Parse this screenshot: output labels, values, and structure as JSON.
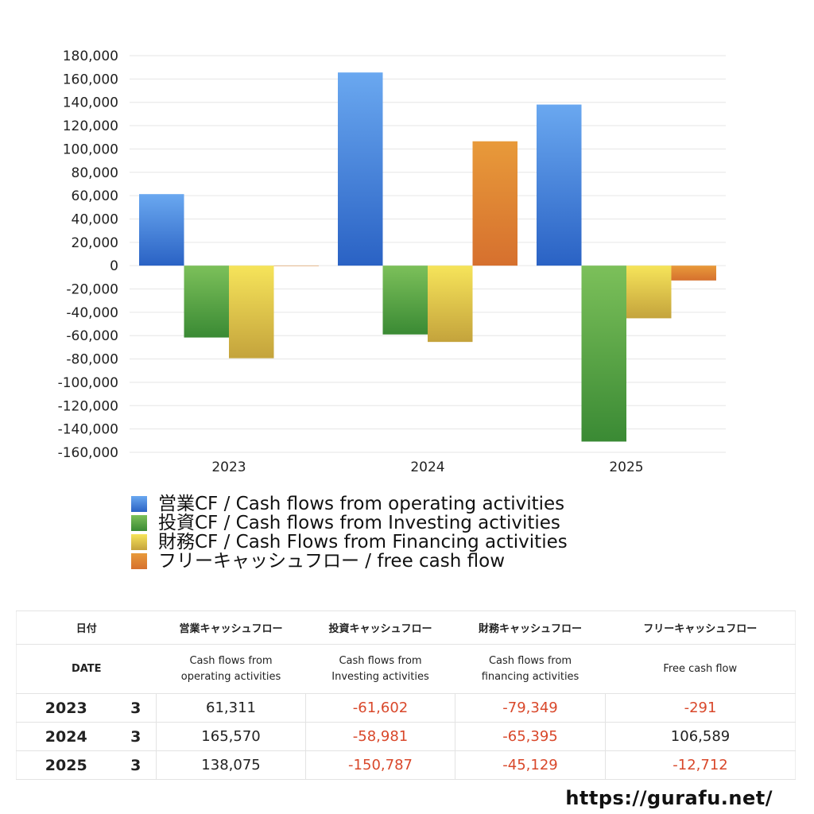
{
  "chart_data": {
    "type": "bar",
    "categories": [
      "2023",
      "2024",
      "2025"
    ],
    "series": [
      {
        "name": "営業CF / Cash flows from operating activities",
        "values": [
          61311,
          165570,
          138075
        ],
        "color_top": "#6aa8f0",
        "color_bottom": "#2a62c4"
      },
      {
        "name": "投資CF / Cash flows from Investing activities",
        "values": [
          -61602,
          -58981,
          -150787
        ],
        "color_top": "#7cc05a",
        "color_bottom": "#3a8a34"
      },
      {
        "name": "財務CF / Cash Flows from Financing activities",
        "values": [
          -79349,
          -65395,
          -45129
        ],
        "color_top": "#f6e45a",
        "color_bottom": "#c4a33c"
      },
      {
        "name": "フリーキャッシュフロー / free cash flow",
        "values": [
          -291,
          106589,
          -12712
        ],
        "color_top": "#e89a3a",
        "color_bottom": "#d6702e"
      }
    ],
    "ylim": [
      -160000,
      180000
    ],
    "yticks": [
      "180,000",
      "160,000",
      "140,000",
      "120,000",
      "100,000",
      "80,000",
      "60,000",
      "40,000",
      "20,000",
      "0",
      "-20,000",
      "-40,000",
      "-60,000",
      "-80,000",
      "-100,000",
      "-120,000",
      "-140,000",
      "-160,000"
    ],
    "grid": true,
    "legend_position": "bottom"
  },
  "table": {
    "headers_ja": [
      "日付",
      "営業キャッシュフロー",
      "投資キャッシュフロー",
      "財務キャッシュフロー",
      "フリーキャッシュフロー"
    ],
    "headers_en": [
      "DATE",
      "Cash flows from\noperating activities",
      "Cash flows from\nInvesting activities",
      "Cash flows from\nfinancing activities",
      "Free cash flow"
    ],
    "rows": [
      {
        "year": "2023",
        "month": "3",
        "values": [
          "61,311",
          "-61,602",
          "-79,349",
          "-291"
        ]
      },
      {
        "year": "2024",
        "month": "3",
        "values": [
          "165,570",
          "-58,981",
          "-65,395",
          "106,589"
        ]
      },
      {
        "year": "2025",
        "month": "3",
        "values": [
          "138,075",
          "-150,787",
          "-45,129",
          "-12,712"
        ]
      }
    ]
  },
  "footer": {
    "url": "https://gurafu.net/"
  }
}
